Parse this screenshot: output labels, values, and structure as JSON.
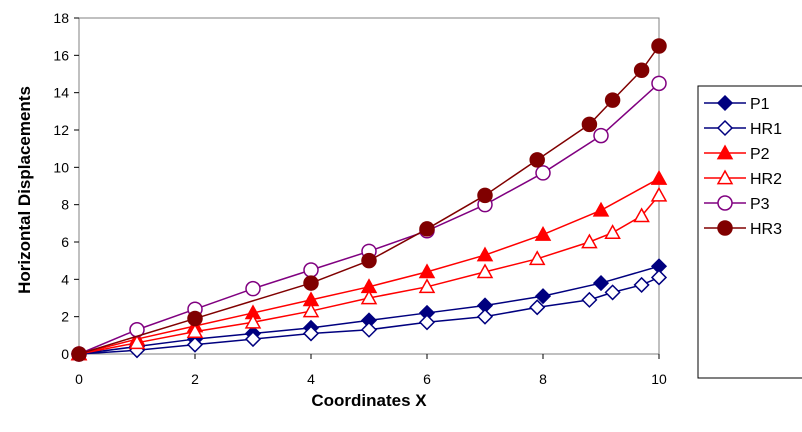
{
  "chart_data": {
    "type": "line",
    "title": "",
    "xlabel": "Coordinates X",
    "ylabel": "Horizontal Displacements",
    "xlim": [
      0,
      10
    ],
    "ylim": [
      0,
      18
    ],
    "xticks": [
      0,
      2,
      4,
      6,
      8,
      10
    ],
    "yticks": [
      0,
      2,
      4,
      6,
      8,
      10,
      12,
      14,
      16,
      18
    ],
    "grid": false,
    "legend_position": "right",
    "series": [
      {
        "name": "P1",
        "color": "#00007f",
        "marker": "diamond",
        "filled": true,
        "x": [
          0,
          1,
          2,
          3,
          4,
          5,
          6,
          7,
          8,
          9,
          10
        ],
        "y": [
          0,
          0.4,
          0.8,
          1.1,
          1.4,
          1.8,
          2.2,
          2.6,
          3.1,
          3.8,
          4.7
        ]
      },
      {
        "name": "HR1",
        "color": "#00007f",
        "marker": "diamond",
        "filled": false,
        "x": [
          0,
          1,
          2,
          3,
          4,
          5,
          6,
          7,
          7.9,
          8.8,
          9.2,
          9.7,
          10
        ],
        "y": [
          0,
          0.2,
          0.5,
          0.8,
          1.1,
          1.3,
          1.7,
          2.0,
          2.5,
          2.9,
          3.3,
          3.7,
          4.1
        ]
      },
      {
        "name": "P2",
        "color": "#ff0000",
        "marker": "triangle",
        "filled": true,
        "x": [
          0,
          1,
          2,
          3,
          4,
          5,
          6,
          7,
          8,
          9,
          10
        ],
        "y": [
          0,
          0.8,
          1.5,
          2.2,
          2.9,
          3.6,
          4.4,
          5.3,
          6.4,
          7.7,
          9.4
        ]
      },
      {
        "name": "HR2",
        "color": "#ff0000",
        "marker": "triangle",
        "filled": false,
        "x": [
          0,
          1,
          2,
          3,
          4,
          5,
          6,
          7,
          7.9,
          8.8,
          9.2,
          9.7,
          10
        ],
        "y": [
          0,
          0.6,
          1.2,
          1.7,
          2.3,
          3.0,
          3.6,
          4.4,
          5.1,
          6.0,
          6.5,
          7.4,
          8.5
        ]
      },
      {
        "name": "P3",
        "color": "#800080",
        "marker": "circle",
        "filled": false,
        "x": [
          0,
          1,
          2,
          3,
          4,
          5,
          6,
          7,
          8,
          9,
          10
        ],
        "y": [
          0,
          1.3,
          2.4,
          3.5,
          4.5,
          5.5,
          6.6,
          8.0,
          9.7,
          11.7,
          14.5
        ]
      },
      {
        "name": "HR3",
        "color": "#800000",
        "marker": "circle",
        "filled": true,
        "x": [
          0,
          2,
          4,
          5,
          6,
          7,
          7.9,
          8.8,
          9.2,
          9.7,
          10
        ],
        "y": [
          0,
          1.9,
          3.8,
          5.0,
          6.7,
          8.5,
          10.4,
          12.3,
          13.6,
          15.2,
          16.5
        ]
      }
    ]
  }
}
